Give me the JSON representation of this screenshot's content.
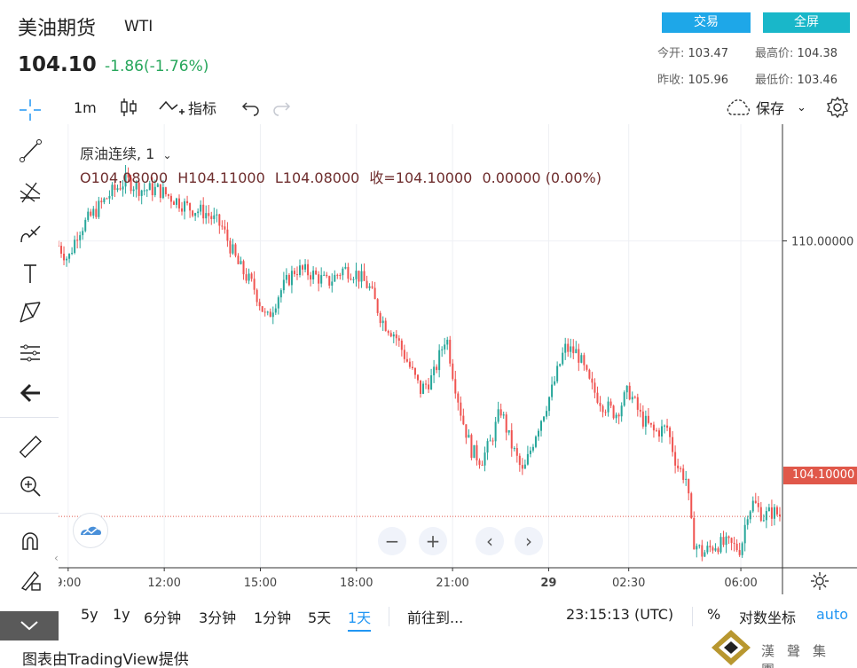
{
  "header": {
    "title": "美油期货",
    "symbol": "WTI",
    "price": "104.10",
    "change": "-1.86(-1.76%)",
    "trade_button": "交易",
    "fullscreen_button": "全屏",
    "stats": {
      "open_label": "今开:",
      "open_value": "103.47",
      "high_label": "最高价:",
      "high_value": "104.38",
      "prev_close_label": "昨收:",
      "prev_close_value": "105.96",
      "low_label": "最低价:",
      "low_value": "103.46"
    }
  },
  "toolbar": {
    "interval": "1m",
    "indicators_label": "指标",
    "save_label": "保存"
  },
  "legend": {
    "name": "原油连续, 1",
    "open": "O104.08000",
    "high": "H104.11000",
    "low": "L104.08000",
    "close": "收=104.10000",
    "change": "0.00000 (0.00%)"
  },
  "price_axis": {
    "tick_110": "110.00000",
    "last_price_tag": "104.10000"
  },
  "time_axis": {
    "labels": [
      "9:00",
      "12:00",
      "15:00",
      "18:00",
      "21:00",
      "29",
      "02:30",
      "06:00"
    ]
  },
  "bottom_bar": {
    "ranges": [
      "5y",
      "1y",
      "6分钟",
      "3分钟",
      "1分钟",
      "5天",
      "1天"
    ],
    "active_range": "1天",
    "goto_label": "前往到...",
    "time": "23:15:13 (UTC)",
    "percent_label": "%",
    "log_label": "对数坐标",
    "auto_label": "auto"
  },
  "footer": {
    "credit": "图表由TradingView提供",
    "brand": "漢聲集團"
  },
  "icons": {
    "crosshair": "crosshair-icon",
    "trendline": "trendline-icon",
    "fib": "fib-icon",
    "brush": "brush-icon",
    "text": "text-icon",
    "pattern": "pattern-icon",
    "measure": "measure-icon",
    "back": "back-arrow-icon",
    "ruler": "ruler-icon",
    "zoom": "zoom-in-icon",
    "magnet": "magnet-icon",
    "lock": "lock-drawing-icon"
  },
  "colors": {
    "up": "#26a69a",
    "down": "#ef5350",
    "last_price": "#e0584a",
    "accent": "#2196f3",
    "trade_btn": "#1ea7e8",
    "fullscreen_btn": "#19b7c9",
    "change_text": "#26a65b"
  },
  "chart_data": {
    "type": "line",
    "title": "",
    "xlabel": "",
    "ylabel": "",
    "x_ticks": [
      "9:00",
      "12:00",
      "15:00",
      "18:00",
      "21:00",
      "29",
      "02:30",
      "06:00"
    ],
    "y_ticks": [
      "110.00000"
    ],
    "last_price": 104.1,
    "x_range_hours": [
      8.7,
      31.3
    ],
    "ylim": [
      103.0,
      112.5
    ],
    "series": [
      {
        "values": [
          [
            8.7,
            109.9
          ],
          [
            9.0,
            109.6
          ],
          [
            9.3,
            110.2
          ],
          [
            9.8,
            110.6
          ],
          [
            10.3,
            111.0
          ],
          [
            10.8,
            111.3
          ],
          [
            11.3,
            111.1
          ],
          [
            11.8,
            111.1
          ],
          [
            12.3,
            110.9
          ],
          [
            12.8,
            110.7
          ],
          [
            13.3,
            110.6
          ],
          [
            13.8,
            110.3
          ],
          [
            14.3,
            109.5
          ],
          [
            14.8,
            109.0
          ],
          [
            15.2,
            108.3
          ],
          [
            15.6,
            108.9
          ],
          [
            16.1,
            109.4
          ],
          [
            16.6,
            109.3
          ],
          [
            17.1,
            109.1
          ],
          [
            17.6,
            109.4
          ],
          [
            18.0,
            109.3
          ],
          [
            18.4,
            109.0
          ],
          [
            18.8,
            108.3
          ],
          [
            19.2,
            108.0
          ],
          [
            19.6,
            107.4
          ],
          [
            20.0,
            106.8
          ],
          [
            20.4,
            107.1
          ],
          [
            20.8,
            108.0
          ],
          [
            21.0,
            107.2
          ],
          [
            21.3,
            106.2
          ],
          [
            21.6,
            105.5
          ],
          [
            21.9,
            105.3
          ],
          [
            22.2,
            105.7
          ],
          [
            22.5,
            106.4
          ],
          [
            22.8,
            105.7
          ],
          [
            23.2,
            105.0
          ],
          [
            23.6,
            105.9
          ],
          [
            24.1,
            106.8
          ],
          [
            24.5,
            107.7
          ],
          [
            24.9,
            107.6
          ],
          [
            25.3,
            106.9
          ],
          [
            25.7,
            106.5
          ],
          [
            26.1,
            106.3
          ],
          [
            26.5,
            106.8
          ],
          [
            26.9,
            106.2
          ],
          [
            27.3,
            105.9
          ],
          [
            27.7,
            106.0
          ],
          [
            28.0,
            105.2
          ],
          [
            28.3,
            104.9
          ],
          [
            28.5,
            103.6
          ],
          [
            28.8,
            103.3
          ],
          [
            29.2,
            103.5
          ],
          [
            29.6,
            103.5
          ],
          [
            30.0,
            103.4
          ],
          [
            30.2,
            104.2
          ],
          [
            30.4,
            104.4
          ],
          [
            30.7,
            104.1
          ],
          [
            31.0,
            104.2
          ],
          [
            31.3,
            104.1
          ]
        ]
      }
    ]
  }
}
